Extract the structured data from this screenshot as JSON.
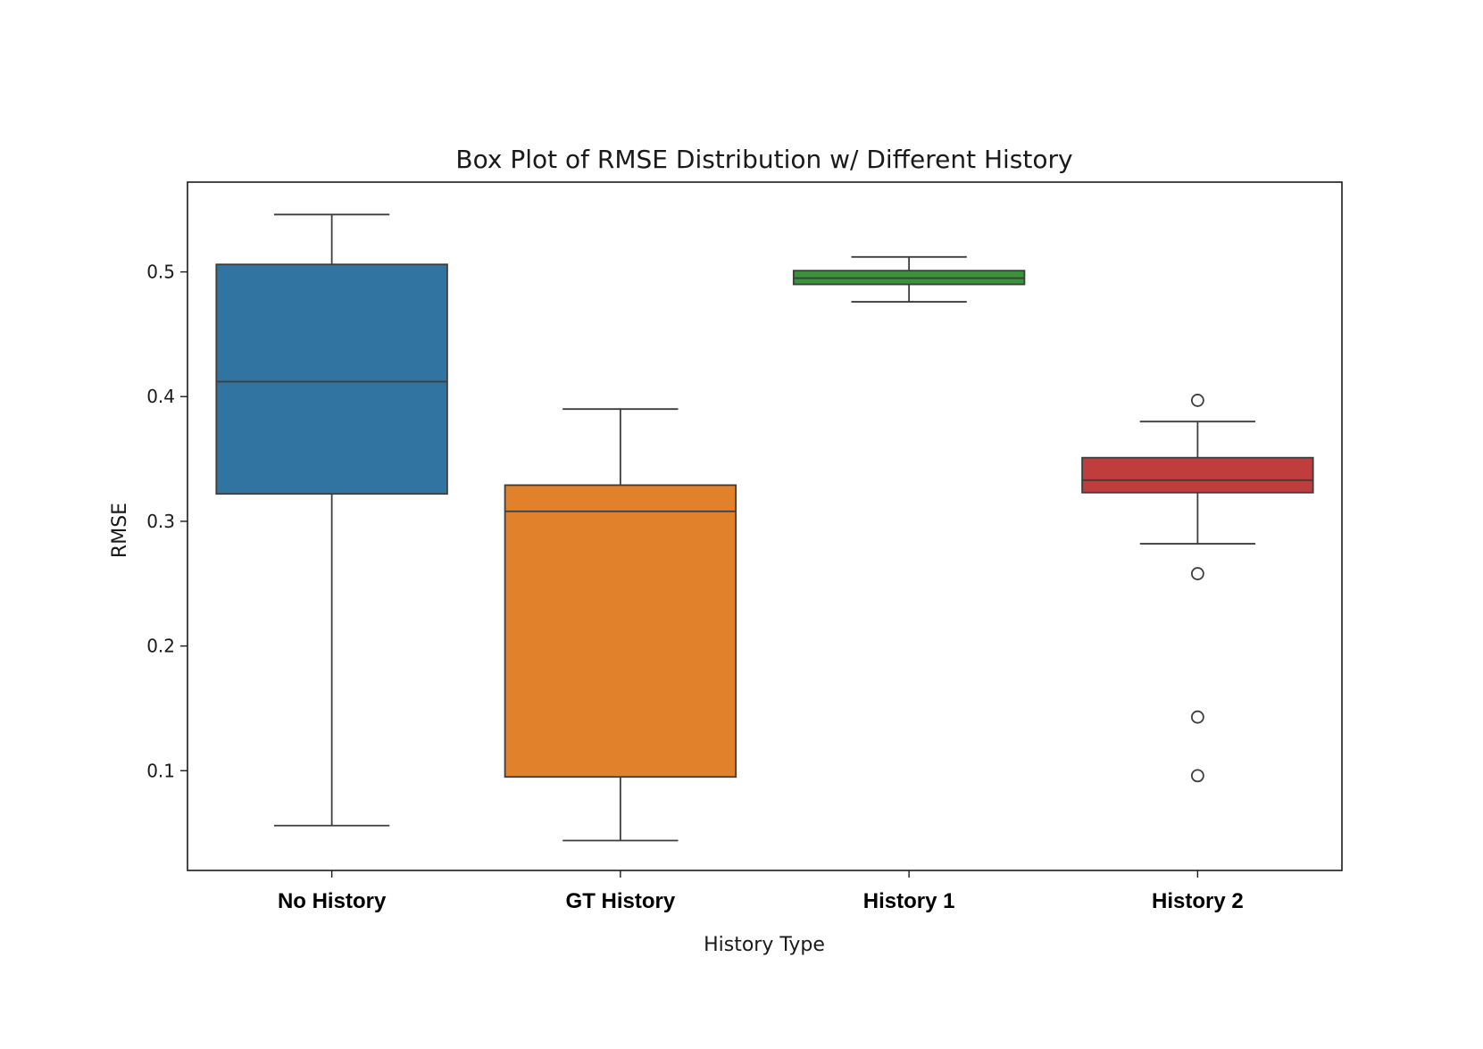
{
  "chart_data": {
    "type": "box",
    "title": "Box Plot of RMSE Distribution w/ Different History",
    "xlabel": "History Type",
    "ylabel": "RMSE",
    "categories": [
      "No History",
      "GT History",
      "History 1",
      "History 2"
    ],
    "ylim": [
      0.02,
      0.572
    ],
    "yticks": [
      0.1,
      0.2,
      0.3,
      0.4,
      0.5
    ],
    "ytick_labels": [
      "0.1",
      "0.2",
      "0.3",
      "0.4",
      "0.5"
    ],
    "grid": false,
    "legend": "none",
    "boxes": [
      {
        "category": "No History",
        "whisker_low": 0.056,
        "q1": 0.322,
        "median": 0.412,
        "q3": 0.506,
        "whisker_high": 0.546,
        "outliers": [],
        "color": "#3274a1"
      },
      {
        "category": "GT History",
        "whisker_low": 0.044,
        "q1": 0.095,
        "median": 0.308,
        "q3": 0.329,
        "whisker_high": 0.39,
        "outliers": [],
        "color": "#e1812c"
      },
      {
        "category": "History 1",
        "whisker_low": 0.476,
        "q1": 0.49,
        "median": 0.495,
        "q3": 0.501,
        "whisker_high": 0.512,
        "outliers": [],
        "color": "#3a923a"
      },
      {
        "category": "History 2",
        "whisker_low": 0.282,
        "q1": 0.323,
        "median": 0.333,
        "q3": 0.351,
        "whisker_high": 0.38,
        "outliers": [
          0.397,
          0.258,
          0.143,
          0.096
        ],
        "color": "#c03d3e"
      }
    ]
  }
}
